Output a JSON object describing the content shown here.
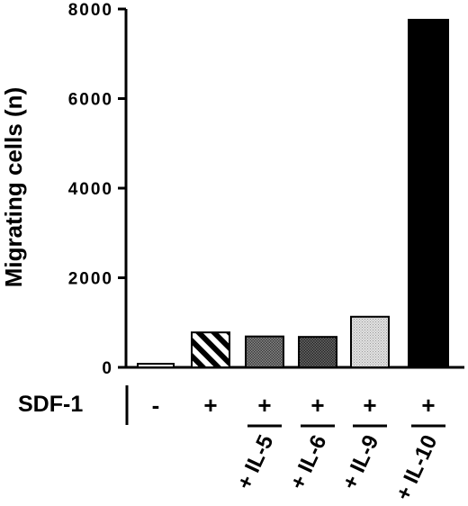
{
  "chart_data": {
    "type": "bar",
    "ylabel": "Migrating cells (n)",
    "ylim": [
      0,
      8000
    ],
    "yticks": [
      "0",
      "2000",
      "4000",
      "6000",
      "8000"
    ],
    "grid": false,
    "categories": [
      "-",
      "+",
      "+ IL-5",
      "+ IL-6",
      "+ IL-9",
      "+ IL-10"
    ],
    "values": [
      80,
      780,
      690,
      680,
      1130,
      7760
    ],
    "row_label": "SDF-1",
    "sdf1_signs": [
      "-",
      "+",
      "+",
      "+",
      "+",
      "+"
    ],
    "interleukins": [
      "",
      "",
      "+ IL-5",
      "+ IL-6",
      "+ IL-9",
      "+ IL-10"
    ],
    "fills": [
      "white",
      "diagonal-stripes",
      "dark-dots",
      "darker-dots",
      "light-dots",
      "solid-black"
    ]
  }
}
